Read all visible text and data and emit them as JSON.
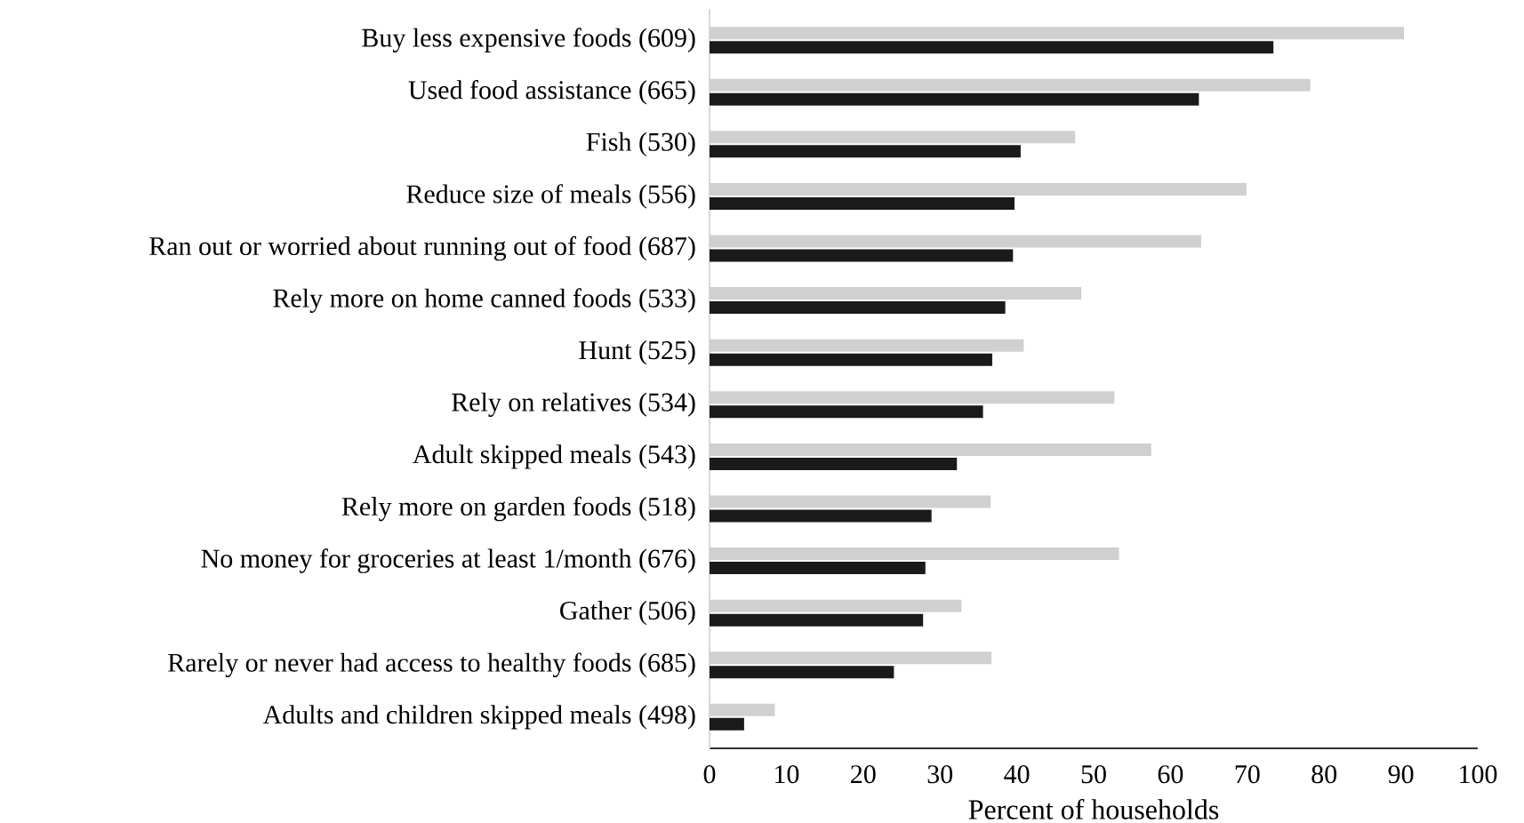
{
  "chart_data": {
    "type": "bar",
    "orientation": "horizontal",
    "categories": [
      "Buy less expensive foods (609)",
      "Used food assistance (665)",
      "Fish (530)",
      "Reduce size of meals (556)",
      "Ran out or worried about running out of food (687)",
      "Rely more on home canned foods (533)",
      "Hunt (525)",
      "Rely on relatives (534)",
      "Adult skipped meals (543)",
      "Rely more on garden foods (518)",
      "No money for groceries at least 1/month (676)",
      "Gather (506)",
      "Rarely or never had access to healthy foods (685)",
      "Adults and children skipped meals (498)"
    ],
    "series": [
      {
        "color": "#d0d0d0",
        "values": [
          90.4,
          78.2,
          47.6,
          69.9,
          64.0,
          48.4,
          40.9,
          52.7,
          57.5,
          36.6,
          53.3,
          32.8,
          36.7,
          8.5
        ]
      },
      {
        "color": "#1a1a1a",
        "values": [
          73.4,
          63.7,
          40.5,
          39.7,
          39.5,
          38.5,
          36.8,
          35.6,
          32.2,
          28.9,
          28.1,
          27.8,
          24.0,
          4.5
        ]
      }
    ],
    "xlabel": "Percent of households",
    "xlim": [
      0,
      100
    ],
    "xticks": [
      0,
      10,
      20,
      30,
      40,
      50,
      60,
      70,
      80,
      90,
      100
    ],
    "grid": false
  }
}
